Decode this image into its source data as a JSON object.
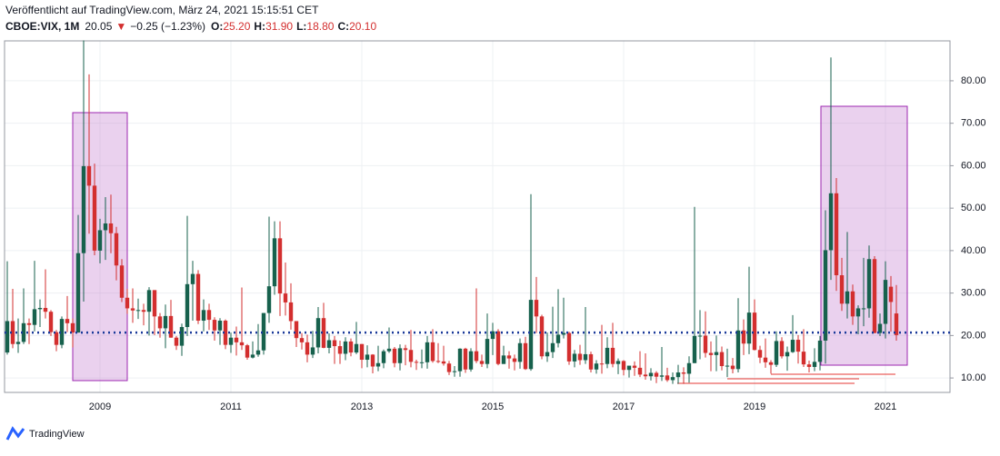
{
  "header": {
    "published": "Veröffentlicht auf TradingView.com, März 24, 2021 15:15:51 CET",
    "symbol": "CBOE:VIX, 1M",
    "last": "20.05",
    "change": "−0.25 (−1.23%)",
    "ohlc": [
      {
        "key": "O:",
        "value": "25.20"
      },
      {
        "key": "H:",
        "value": "31.90"
      },
      {
        "key": "L:",
        "value": "18.80"
      },
      {
        "key": "C:",
        "value": "20.10"
      }
    ]
  },
  "footer": {
    "brand": "TradingView"
  },
  "chart_data": {
    "type": "candlestick",
    "categories": [
      null,
      null,
      null,
      null,
      null,
      null,
      null,
      null,
      null,
      null,
      null,
      null,
      null,
      null,
      null,
      null,
      null,
      "2009",
      null,
      null,
      null,
      null,
      null,
      null,
      null,
      null,
      null,
      null,
      null,
      null,
      null,
      null,
      null,
      null,
      null,
      null,
      null,
      null,
      null,
      null,
      null,
      "2011",
      null,
      null,
      null,
      null,
      null,
      null,
      null,
      null,
      null,
      null,
      null,
      null,
      null,
      null,
      null,
      null,
      null,
      null,
      null,
      null,
      null,
      null,
      null,
      "2013",
      null,
      null,
      null,
      null,
      null,
      null,
      null,
      null,
      null,
      null,
      null,
      null,
      null,
      null,
      null,
      null,
      null,
      null,
      null,
      null,
      null,
      null,
      null,
      "2015",
      null,
      null,
      null,
      null,
      null,
      null,
      null,
      null,
      null,
      null,
      null,
      null,
      null,
      null,
      null,
      null,
      null,
      null,
      null,
      null,
      null,
      null,
      null,
      "2017",
      null,
      null,
      null,
      null,
      null,
      null,
      null,
      null,
      null,
      null,
      null,
      null,
      null,
      null,
      null,
      null,
      null,
      null,
      null,
      null,
      null,
      null,
      null,
      "2019",
      null,
      null,
      null,
      null,
      null,
      null,
      null,
      null,
      null,
      null,
      null,
      null,
      null,
      null,
      null,
      null,
      null,
      null,
      null,
      null,
      null,
      null,
      null,
      "2021",
      null,
      null
    ],
    "open": [
      16,
      23.4,
      18,
      18.5,
      22.9,
      22.5,
      26.2,
      26.5,
      25.6,
      20.8,
      17.8,
      23.9,
      22.9,
      20.7,
      39.4,
      59.9,
      55.3,
      40,
      44.8,
      46.4,
      44.1,
      36.5,
      28.9,
      26.4,
      25.9,
      26,
      25.6,
      30.7,
      24.5,
      21.7,
      24.6,
      19.5,
      17.6,
      22,
      32.1,
      34.5,
      23.5,
      26,
      23.7,
      21.2,
      23.5,
      17.8,
      19.5,
      18.4,
      17.7,
      14.8,
      15.5,
      16.5,
      25.3,
      31.6,
      42.9,
      29.9,
      27.8,
      23.4,
      19.4,
      18.4,
      15.5,
      17.2,
      24.1,
      17.1,
      18.9,
      17.5,
      15.7,
      18.6,
      16,
      18,
      14.3,
      15.5,
      12.7,
      13.5,
      16.3,
      16.9,
      13.5,
      17,
      16.6,
      13.8,
      13.7,
      13.7,
      18.4,
      14,
      13.9,
      13.4,
      11.4,
      11.6,
      16.9,
      12,
      16.3,
      14,
      13.3,
      19.2,
      21,
      13.3,
      15.3,
      14.6,
      13.8,
      18.2,
      12.1,
      28.4,
      24.5,
      15.1,
      16.1,
      18.2,
      20.2,
      20.6,
      13.9,
      15.7,
      14.2,
      15.6,
      12,
      13.4,
      13.3,
      17.1,
      13.3,
      14,
      11.9,
      12.9,
      12.4,
      10.8,
      10.4,
      11.2,
      10.3,
      10.6,
      9.5,
      10.2,
      11.3,
      11,
      13.5,
      19.9,
      19.97,
      15.9,
      15.4,
      16.1,
      12.8,
      12.9,
      12.1,
      21.2,
      18.1,
      25.4,
      16.6,
      14.8,
      13.7,
      13.1,
      18.7,
      15.1,
      16.1,
      19,
      16.2,
      13.2,
      12.6,
      13.8,
      18.8,
      40.1,
      53.5,
      34.2,
      27.5,
      30.4,
      24.5,
      26.4,
      26.4,
      38,
      20.6,
      22.75,
      31.5,
      25.2
    ],
    "high": [
      37.5,
      31,
      24,
      31.1,
      24,
      37.6,
      28.5,
      35.6,
      26,
      21.3,
      24.5,
      29.3,
      24,
      48.4,
      89.5,
      81.5,
      60.5,
      47.5,
      52.6,
      53.2,
      45.6,
      38,
      31,
      31.1,
      28.7,
      27.5,
      31.4,
      30.7,
      25.3,
      27.3,
      28.4,
      19.9,
      22.8,
      48.2,
      37.6,
      35.4,
      28.5,
      27.5,
      24.3,
      24.1,
      23.8,
      20.7,
      22.1,
      31.3,
      18,
      18.6,
      22.7,
      25.3,
      48,
      46.9,
      46.9,
      37.2,
      32.3,
      23.4,
      20.6,
      20.2,
      21.1,
      26.7,
      27.7,
      20.5,
      19.9,
      18.8,
      19.6,
      19.3,
      23.2,
      18,
      17.7,
      15.6,
      17.6,
      16.7,
      21.9,
      17.3,
      17.9,
      17.8,
      21.3,
      14.3,
      16.7,
      19.9,
      21.5,
      18.2,
      17.6,
      14,
      12.8,
      17,
      17.1,
      17,
      31.1,
      15.5,
      25.2,
      23,
      21.5,
      17.6,
      16.3,
      15.5,
      19.3,
      19.7,
      53.3,
      33.8,
      24.9,
      20.7,
      26.8,
      30.9,
      28.9,
      20.9,
      16.6,
      17.8,
      26.7,
      16.2,
      14.2,
      22.5,
      19.6,
      23,
      14.6,
      14.2,
      12.7,
      13.9,
      16.3,
      15.8,
      12.3,
      11.6,
      17.3,
      12.4,
      11.3,
      13.1,
      12.5,
      15.1,
      50.3,
      26,
      25.7,
      18.6,
      20,
      17.4,
      16.9,
      14.7,
      28.8,
      23.8,
      36.2,
      28.5,
      17.6,
      19.3,
      14.2,
      21,
      19.6,
      17.4,
      24.8,
      20.1,
      21.5,
      14.1,
      17,
      19.9,
      49.5,
      85.5,
      57.1,
      38.3,
      44.4,
      32,
      27.1,
      38.3,
      41.2,
      38.7,
      25.2,
      37.5,
      34,
      31.9
    ],
    "low": [
      15.5,
      17,
      15.9,
      18,
      18,
      21,
      22,
      24,
      19.9,
      16.3,
      17,
      20.8,
      17.2,
      20.7,
      28,
      44,
      38.9,
      37,
      37.8,
      39.4,
      33,
      27.9,
      25.1,
      23,
      23.9,
      22.4,
      20,
      20.1,
      19.5,
      17,
      19.5,
      16.6,
      15.2,
      19.9,
      23.5,
      22.7,
      21,
      21.3,
      18.8,
      17.8,
      16.8,
      15.9,
      15.3,
      16.6,
      14.3,
      14.6,
      15,
      15.5,
      23,
      29.6,
      24.6,
      24.7,
      21.4,
      17.3,
      16.7,
      13.7,
      14.7,
      15.8,
      17,
      15.8,
      13.3,
      13.3,
      14.2,
      15.1,
      15.6,
      12.3,
      12.5,
      11.1,
      11.6,
      12.3,
      15.9,
      12.5,
      11.8,
      13,
      12.5,
      11.9,
      12.3,
      12.2,
      13.6,
      13.5,
      12.9,
      10.7,
      10.3,
      10.3,
      11.2,
      11.5,
      13.5,
      12.6,
      12.3,
      15.4,
      13,
      13.3,
      12.2,
      11.8,
      12.2,
      11.9,
      11.7,
      20.6,
      14.4,
      13.8,
      14.7,
      17.2,
      19.3,
      13.1,
      12.5,
      13.1,
      13.3,
      11.3,
      11,
      11,
      12.3,
      12.5,
      10.9,
      10.6,
      10.1,
      10.5,
      10.2,
      9.6,
      9.4,
      8.8,
      9.3,
      9.1,
      8.6,
      8.6,
      8.6,
      8.9,
      13.5,
      14.4,
      14.8,
      11.6,
      11.6,
      11.8,
      10.2,
      11.1,
      11.3,
      15.4,
      15.6,
      16.5,
      13.5,
      12.4,
      11,
      12.6,
      14.6,
      11.7,
      15.9,
      13.4,
      12.6,
      11.3,
      11.6,
      11.8,
      13.4,
      33.1,
      30.5,
      25.8,
      24,
      22.5,
      20.3,
      22.2,
      24.2,
      20.5,
      19.9,
      19.3,
      20.9,
      18.8
    ],
    "close": [
      23.4,
      18,
      18.5,
      22.9,
      22.5,
      26.2,
      26.5,
      25.6,
      20.8,
      17.8,
      23.9,
      22.9,
      20.7,
      39.4,
      59.9,
      55.3,
      40,
      44.8,
      46.4,
      44.1,
      36.5,
      28.9,
      26.4,
      25.9,
      26,
      25.6,
      30.7,
      24.5,
      21.7,
      24.6,
      19.5,
      17.6,
      22,
      32.1,
      34.5,
      23.5,
      26,
      23.7,
      21.2,
      23.5,
      17.8,
      19.5,
      18.4,
      17.7,
      14.8,
      15.5,
      16.5,
      25.3,
      31.6,
      42.9,
      29.9,
      27.8,
      23.4,
      19.4,
      18.4,
      15.5,
      17.2,
      24.1,
      17.1,
      18.9,
      17.5,
      15.7,
      18.6,
      16,
      18,
      14.3,
      15.5,
      12.7,
      13.5,
      16.3,
      16.9,
      13.5,
      17,
      16.6,
      13.8,
      13.7,
      13.7,
      18.4,
      14,
      13.9,
      13.4,
      11.4,
      11.6,
      16.9,
      12,
      16.3,
      14,
      13.3,
      19.2,
      21,
      13.3,
      15.3,
      14.6,
      13.8,
      18.2,
      12.1,
      28.4,
      24.5,
      15.1,
      16.1,
      18.2,
      20.2,
      20.6,
      13.9,
      15.7,
      14.2,
      15.6,
      12,
      13.4,
      13.3,
      17.1,
      13.3,
      14,
      11.9,
      12.9,
      12.4,
      10.8,
      10.4,
      11.2,
      10.3,
      10.6,
      9.5,
      10.2,
      11.3,
      11,
      13.5,
      19.9,
      19.97,
      15.9,
      15.4,
      16.1,
      12.8,
      12.9,
      12.1,
      21.2,
      18.1,
      25.4,
      16.6,
      14.8,
      13.7,
      13.1,
      18.7,
      15.1,
      16.1,
      19,
      16.2,
      13.2,
      12.6,
      13.8,
      18.8,
      40.1,
      53.5,
      34.2,
      27.5,
      30.4,
      24.5,
      26.4,
      26.4,
      38,
      20.6,
      22.75,
      33.1,
      27.9,
      20.1
    ],
    "up_color": "#17614d",
    "down_color": "#d32f2f",
    "price_line": 20.7,
    "price_line_color": "#1a3a9a",
    "ylim": [
      6.6,
      89.4
    ],
    "yticks": [
      {
        "value": 10,
        "label": "10.00"
      },
      {
        "value": 20,
        "label": "20.00"
      },
      {
        "value": 30,
        "label": "30.00"
      },
      {
        "value": 40,
        "label": "40.00"
      },
      {
        "value": 50,
        "label": "50.00"
      },
      {
        "value": 60,
        "label": "60.00"
      },
      {
        "value": 70,
        "label": "70.00"
      },
      {
        "value": 80,
        "label": "80.00"
      }
    ],
    "grid": true
  }
}
